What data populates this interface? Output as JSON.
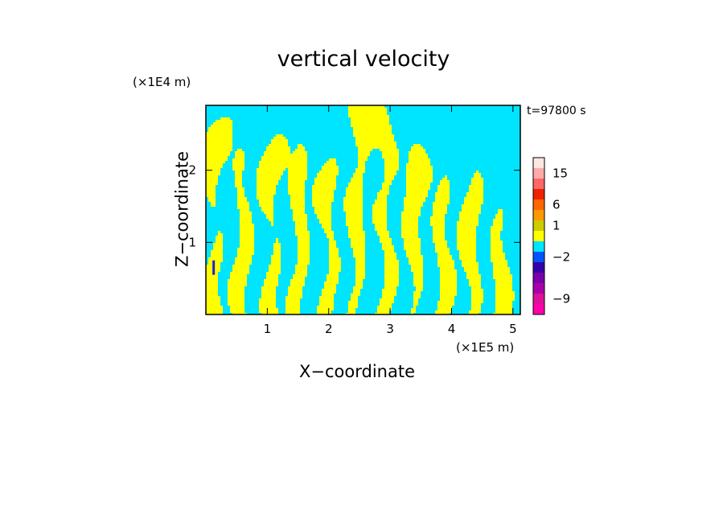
{
  "chart_data": {
    "type": "heatmap",
    "title": "vertical velocity",
    "xlabel": "X−coordinate",
    "ylabel": "Z−coordinate",
    "x_unit": "(×1E5 m)",
    "y_unit": "(×1E4 m)",
    "annotation": "t=97800 s",
    "xlim": [
      0,
      5.12
    ],
    "ylim": [
      0,
      2.9
    ],
    "x_ticks": [
      1,
      2,
      3,
      4,
      5
    ],
    "y_ticks": [
      1,
      2
    ],
    "x_tick_labels": [
      "1",
      "2",
      "3",
      "4",
      "5"
    ],
    "y_tick_labels": [
      "1",
      "2"
    ],
    "field_description": "dominant values alternate between slightly negative (cyan, -2 to 0) and slightly positive (yellow, 0 to 1); small negative streak (blue) near x=0.12, z=0.7",
    "colorbar": {
      "levels": [
        {
          "label": "",
          "color": "#ff00aa"
        },
        {
          "label": "−9",
          "color": "#dd1199"
        },
        {
          "label": "",
          "color": "#aa00aa"
        },
        {
          "label": "",
          "color": "#7700aa"
        },
        {
          "label": "",
          "color": "#3300aa"
        },
        {
          "label": "−2",
          "color": "#0055ff"
        },
        {
          "label": "",
          "color": "#00e5ff"
        },
        {
          "label": "",
          "color": "#ffff00"
        },
        {
          "label": "1",
          "color": "#cccc00"
        },
        {
          "label": "",
          "color": "#ff9900"
        },
        {
          "label": "6",
          "color": "#ff6600"
        },
        {
          "label": "",
          "color": "#ee2200"
        },
        {
          "label": "",
          "color": "#ff6666"
        },
        {
          "label": "15",
          "color": "#ffaaaa"
        },
        {
          "label": "",
          "color": "#ffe6e0"
        }
      ]
    }
  },
  "colors": {
    "negative": "#00e5ff",
    "positive": "#ffff00",
    "strong_negative": "#2222cc"
  }
}
